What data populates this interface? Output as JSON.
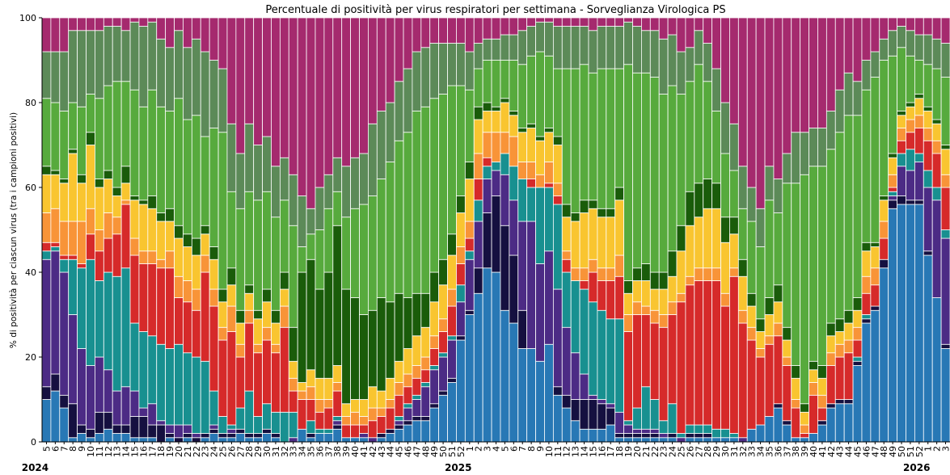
{
  "chart_data": {
    "type": "stacked_bar",
    "title": "Percentuale di positività per virus respiratori per settimana - Sorveglianza Virologica PS",
    "y_label": "% di positività per ciascun virus (tra i campioni positivi)",
    "years": [
      "2024",
      "2025",
      "2026"
    ],
    "categories": [
      "5",
      "6",
      "7",
      "8",
      "9",
      "10",
      "11",
      "12",
      "13",
      "14",
      "15",
      "16",
      "17",
      "18",
      "19",
      "20",
      "21",
      "22",
      "23",
      "24",
      "25",
      "26",
      "27",
      "28",
      "29",
      "30",
      "31",
      "32",
      "33",
      "34",
      "35",
      "36",
      "37",
      "38",
      "39",
      "40",
      "41",
      "42",
      "43",
      "44",
      "45",
      "46",
      "47",
      "48",
      "49",
      "50",
      "51",
      "52",
      "1",
      "2",
      "3",
      "4",
      "5",
      "6",
      "7",
      "8",
      "9",
      "10",
      "11",
      "12",
      "13",
      "14",
      "15",
      "16",
      "17",
      "18",
      "19",
      "20",
      "21",
      "22",
      "23",
      "24",
      "25",
      "26",
      "27",
      "28",
      "29",
      "30",
      "31",
      "32",
      "33",
      "34",
      "35",
      "36",
      "37",
      "38",
      "39",
      "40",
      "41",
      "42",
      "43",
      "44",
      "45",
      "46",
      "47",
      "48",
      "49",
      "50",
      "51",
      "52",
      "1",
      "2",
      "3"
    ],
    "ylim": [
      0,
      100
    ],
    "yticks": [
      0,
      20,
      40,
      60,
      80,
      100
    ],
    "series": [
      {
        "color": "#2878b5",
        "values": [
          10,
          12,
          8,
          1,
          2,
          1,
          2,
          3,
          2,
          2,
          1,
          1,
          1,
          0,
          1,
          0,
          1,
          0,
          1,
          2,
          1,
          1,
          2,
          1,
          1,
          2,
          1,
          0,
          0,
          3,
          1,
          2,
          2,
          3,
          1,
          1,
          1,
          0,
          1,
          2,
          3,
          4,
          5,
          5,
          8,
          11,
          14,
          24,
          30,
          35,
          41,
          40,
          31,
          28,
          22,
          22,
          19,
          23,
          11,
          8,
          5,
          3,
          3,
          3,
          4,
          1,
          1,
          1,
          1,
          1,
          1,
          1,
          0,
          1,
          1,
          1,
          1,
          1,
          1,
          0,
          3,
          4,
          6,
          8,
          4,
          1,
          1,
          2,
          4,
          8,
          9,
          9,
          18,
          28,
          31,
          41,
          55,
          56,
          56,
          56,
          44,
          34,
          22
        ]
      },
      {
        "color": "#151040",
        "values": [
          3,
          4,
          3,
          8,
          2,
          2,
          5,
          4,
          2,
          2,
          5,
          5,
          3,
          4,
          1,
          1,
          1,
          1,
          1,
          1,
          1,
          1,
          1,
          1,
          1,
          1,
          1,
          0,
          0,
          0,
          1,
          0,
          0,
          1,
          0,
          0,
          0,
          0,
          1,
          1,
          1,
          1,
          1,
          1,
          1,
          1,
          1,
          1,
          1,
          6,
          13,
          18,
          20,
          16,
          9,
          0,
          0,
          0,
          2,
          3,
          5,
          7,
          7,
          6,
          4,
          1,
          1,
          1,
          1,
          1,
          0,
          1,
          0,
          1,
          1,
          1,
          0,
          0,
          0,
          0,
          0,
          0,
          0,
          1,
          1,
          0,
          0,
          0,
          1,
          1,
          1,
          1,
          1,
          1,
          1,
          2,
          2,
          2,
          1,
          1,
          1,
          0,
          1
        ]
      },
      {
        "color": "#4c2b85",
        "values": [
          30,
          29,
          29,
          21,
          18,
          15,
          13,
          10,
          8,
          9,
          6,
          2,
          5,
          1,
          2,
          3,
          2,
          1,
          0,
          1,
          0,
          1,
          0,
          0,
          0,
          0,
          0,
          0,
          1,
          0,
          0,
          0,
          0,
          1,
          0,
          0,
          1,
          1,
          0,
          0,
          1,
          3,
          4,
          7,
          8,
          8,
          9,
          8,
          12,
          11,
          8,
          6,
          12,
          13,
          21,
          30,
          23,
          22,
          23,
          16,
          11,
          6,
          1,
          1,
          1,
          5,
          2,
          1,
          1,
          1,
          1,
          0,
          1,
          0,
          0,
          0,
          0,
          0,
          0,
          1,
          0,
          0,
          0,
          0,
          0,
          0,
          0,
          0,
          0,
          0,
          0,
          0,
          0,
          0,
          0,
          0,
          1,
          7,
          7,
          9,
          15,
          23,
          25
        ]
      },
      {
        "color": "#189090",
        "values": [
          2,
          1,
          3,
          13,
          19,
          25,
          18,
          23,
          27,
          28,
          16,
          18,
          16,
          18,
          18,
          19,
          17,
          18,
          17,
          8,
          4,
          1,
          5,
          10,
          4,
          6,
          5,
          7,
          6,
          0,
          3,
          1,
          1,
          1,
          0,
          0,
          0,
          0,
          0,
          0,
          1,
          1,
          1,
          1,
          1,
          1,
          1,
          4,
          2,
          5,
          3,
          2,
          5,
          8,
          10,
          8,
          18,
          15,
          20,
          13,
          17,
          20,
          22,
          21,
          20,
          22,
          1,
          5,
          10,
          7,
          3,
          7,
          1,
          2,
          2,
          2,
          2,
          2,
          1,
          0,
          0,
          0,
          0,
          0,
          0,
          0,
          0,
          0,
          0,
          0,
          0,
          0,
          1,
          1,
          0,
          0,
          1,
          3,
          5,
          2,
          4,
          3,
          2
        ]
      },
      {
        "color": "#d62a2a",
        "values": [
          2,
          1,
          1,
          1,
          1,
          6,
          7,
          8,
          10,
          15,
          16,
          16,
          17,
          18,
          19,
          11,
          12,
          11,
          21,
          20,
          18,
          22,
          12,
          16,
          15,
          15,
          14,
          20,
          5,
          7,
          5,
          4,
          5,
          6,
          3,
          3,
          2,
          4,
          4,
          5,
          5,
          4,
          4,
          3,
          4,
          5,
          7,
          5,
          3,
          5,
          2,
          0,
          0,
          0,
          0,
          2,
          0,
          1,
          2,
          3,
          0,
          2,
          7,
          7,
          9,
          10,
          21,
          22,
          17,
          18,
          22,
          21,
          31,
          33,
          34,
          34,
          35,
          29,
          37,
          27,
          21,
          16,
          17,
          16,
          13,
          7,
          1,
          9,
          3,
          9,
          10,
          11,
          4,
          5,
          5,
          5,
          1,
          3,
          4,
          6,
          7,
          8,
          10
        ]
      },
      {
        "color": "#f89438",
        "values": [
          7,
          8,
          8,
          8,
          10,
          6,
          5,
          6,
          4,
          1,
          4,
          3,
          3,
          2,
          4,
          5,
          5,
          5,
          4,
          4,
          3,
          6,
          3,
          3,
          2,
          3,
          2,
          5,
          3,
          2,
          3,
          3,
          2,
          2,
          2,
          3,
          2,
          3,
          2,
          2,
          3,
          3,
          3,
          3,
          3,
          3,
          4,
          4,
          4,
          6,
          6,
          7,
          5,
          7,
          4,
          4,
          3,
          5,
          3,
          2,
          3,
          3,
          3,
          3,
          3,
          5,
          4,
          3,
          2,
          3,
          3,
          3,
          2,
          2,
          3,
          3,
          3,
          3,
          2,
          3,
          3,
          2,
          2,
          3,
          2,
          2,
          2,
          3,
          3,
          3,
          3,
          3,
          3,
          4,
          4,
          4,
          3,
          3,
          3,
          3,
          3,
          3,
          3
        ]
      },
      {
        "color": "#f9c530",
        "values": [
          9,
          8,
          9,
          16,
          9,
          15,
          10,
          8,
          5,
          4,
          9,
          11,
          10,
          9,
          7,
          9,
          8,
          8,
          5,
          7,
          6,
          5,
          5,
          4,
          6,
          6,
          5,
          4,
          4,
          2,
          4,
          5,
          5,
          4,
          3,
          3,
          4,
          5,
          4,
          5,
          5,
          6,
          7,
          7,
          8,
          8,
          8,
          8,
          10,
          8,
          5,
          5,
          7,
          5,
          7,
          8,
          8,
          7,
          9,
          8,
          11,
          13,
          12,
          12,
          12,
          13,
          5,
          5,
          6,
          5,
          6,
          6,
          10,
          12,
          12,
          14,
          14,
          12,
          8,
          8,
          5,
          4,
          5,
          5,
          4,
          5,
          3,
          3,
          4,
          4,
          3,
          4,
          4,
          6,
          5,
          5,
          4,
          3,
          3,
          4,
          4,
          4,
          6
        ]
      },
      {
        "color": "#1a5c0a",
        "values": [
          2,
          1,
          1,
          1,
          2,
          3,
          2,
          2,
          2,
          4,
          1,
          1,
          3,
          2,
          3,
          3,
          3,
          4,
          2,
          3,
          3,
          4,
          3,
          2,
          2,
          3,
          3,
          4,
          8,
          26,
          26,
          21,
          25,
          33,
          27,
          24,
          20,
          18,
          22,
          18,
          16,
          12,
          10,
          8,
          7,
          6,
          5,
          4,
          4,
          3,
          2,
          1,
          1,
          1,
          1,
          1,
          1,
          1,
          2,
          3,
          2,
          3,
          2,
          2,
          2,
          3,
          3,
          3,
          4,
          4,
          4,
          6,
          6,
          8,
          8,
          7,
          6,
          6,
          4,
          4,
          3,
          3,
          4,
          4,
          3,
          3,
          2,
          2,
          3,
          3,
          3,
          3,
          3,
          2,
          1,
          1,
          1,
          1,
          1,
          1,
          1,
          1,
          1
        ]
      },
      {
        "color": "#57aa3d",
        "values": [
          16,
          16,
          16,
          11,
          16,
          9,
          19,
          20,
          25,
          20,
          25,
          22,
          25,
          25,
          23,
          30,
          27,
          29,
          21,
          28,
          37,
          18,
          24,
          22,
          26,
          23,
          22,
          17,
          24,
          6,
          6,
          14,
          15,
          8,
          17,
          21,
          26,
          27,
          28,
          33,
          36,
          39,
          43,
          44,
          41,
          39,
          35,
          26,
          17,
          9,
          10,
          11,
          9,
          12,
          15,
          16,
          20,
          17,
          16,
          32,
          34,
          32,
          30,
          33,
          33,
          28,
          51,
          46,
          45,
          46,
          42,
          39,
          31,
          26,
          28,
          23,
          17,
          15,
          11,
          12,
          17,
          17,
          23,
          17,
          34,
          43,
          54,
          46,
          47,
          41,
          44,
          46,
          43,
          36,
          39,
          32,
          23,
          15,
          11,
          8,
          10,
          12,
          16
        ]
      },
      {
        "color": "#5c8a58",
        "values": [
          11,
          12,
          14,
          17,
          18,
          15,
          16,
          14,
          13,
          12,
          16,
          19,
          16,
          16,
          15,
          16,
          17,
          18,
          20,
          16,
          15,
          16,
          13,
          16,
          13,
          13,
          12,
          10,
          12,
          12,
          6,
          10,
          8,
          8,
          12,
          12,
          12,
          17,
          16,
          14,
          14,
          15,
          14,
          14,
          13,
          12,
          10,
          10,
          9,
          6,
          5,
          5,
          6,
          6,
          8,
          7,
          7,
          8,
          10,
          10,
          10,
          9,
          10,
          10,
          10,
          10,
          10,
          11,
          10,
          11,
          13,
          12,
          10,
          8,
          8,
          9,
          10,
          12,
          11,
          10,
          8,
          9,
          8,
          8,
          7,
          12,
          10,
          9,
          9,
          9,
          10,
          10,
          8,
          7,
          6,
          5,
          6,
          5,
          6,
          6,
          7,
          7,
          8
        ]
      },
      {
        "color": "#a52a6e",
        "values": [
          8,
          8,
          8,
          3,
          3,
          3,
          3,
          2,
          2,
          3,
          1,
          2,
          1,
          5,
          7,
          3,
          7,
          5,
          8,
          10,
          12,
          25,
          32,
          25,
          30,
          28,
          35,
          33,
          37,
          42,
          45,
          40,
          37,
          33,
          35,
          33,
          32,
          25,
          22,
          20,
          15,
          12,
          8,
          7,
          6,
          6,
          6,
          6,
          8,
          6,
          5,
          5,
          4,
          4,
          3,
          2,
          1,
          1,
          2,
          2,
          2,
          2,
          3,
          2,
          2,
          2,
          1,
          2,
          3,
          3,
          5,
          4,
          8,
          7,
          3,
          6,
          12,
          20,
          25,
          35,
          40,
          45,
          35,
          38,
          32,
          27,
          27,
          26,
          26,
          22,
          17,
          13,
          15,
          10,
          8,
          5,
          3,
          2,
          3,
          4,
          4,
          5,
          6
        ]
      }
    ]
  }
}
